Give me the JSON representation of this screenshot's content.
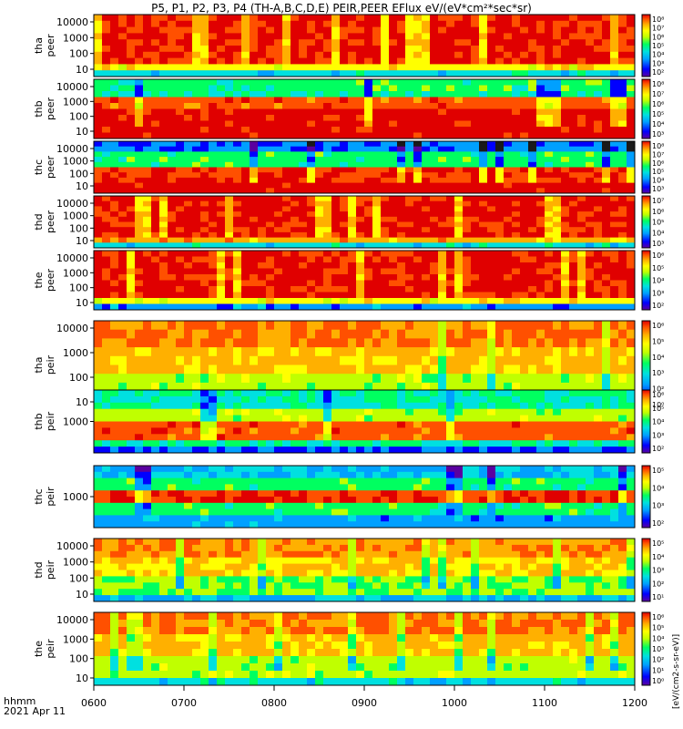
{
  "title": "P5, P1, P2, P3, P4 (TH-A,B,C,D,E) PEIR,PEER EFlux eV/(eV*cm²*sec*sr)",
  "footer": {
    "line1": "hhmm",
    "line2": "2021 Apr 11"
  },
  "colorbar_unit_label": "[eV/(cm2-s-sr-eV)]",
  "colormap": [
    "#1a1a1a",
    "#5a00a0",
    "#0000ff",
    "#00a0ff",
    "#00e0e0",
    "#00ff60",
    "#c0ff00",
    "#ffff00",
    "#ffb000",
    "#ff5000",
    "#e00000"
  ],
  "chart_data": {
    "type": "heatmap",
    "xlabel": "",
    "x_ticks": [
      "0600",
      "0700",
      "0800",
      "0900",
      "1000",
      "1100",
      "1200"
    ],
    "x_range": [
      "0600",
      "1200"
    ],
    "panels": [
      {
        "label_line1": "tha",
        "label_line2": "peer",
        "yticks": [
          "10000",
          "1000",
          "100",
          "10"
        ],
        "cb_ticks": [
          "10⁸",
          "10⁷",
          "10⁶",
          "10⁵",
          "10⁴",
          "10³",
          "10²"
        ]
      },
      {
        "label_line1": "thb",
        "label_line2": "peer",
        "yticks": [
          "10000",
          "1000",
          "100",
          "10"
        ],
        "cb_ticks": [
          "10⁸",
          "10⁷",
          "10⁶",
          "10⁵",
          "10⁴",
          "10³"
        ]
      },
      {
        "label_line1": "thc",
        "label_line2": "peer",
        "yticks": [
          "10000",
          "1000",
          "100",
          "10"
        ],
        "cb_ticks": [
          "10⁸",
          "10⁷",
          "10⁶",
          "10⁵",
          "10⁴",
          "10³"
        ]
      },
      {
        "label_line1": "thd",
        "label_line2": "peer",
        "yticks": [
          "10000",
          "1000",
          "100",
          "10"
        ],
        "cb_ticks": [
          "10⁷",
          "10⁶",
          "10⁵",
          "10⁴",
          "10³"
        ]
      },
      {
        "label_line1": "the",
        "label_line2": "peer",
        "yticks": [
          "10000",
          "1000",
          "100",
          "10"
        ],
        "cb_ticks": [
          "10⁶",
          "10⁵",
          "10⁴",
          "10³",
          "10²"
        ]
      },
      {
        "label_line1": "tha",
        "label_line2": "peir",
        "yticks": [
          "10000",
          "1000",
          "100",
          "10"
        ],
        "cb_ticks": [
          "10⁶",
          "10⁵",
          "10⁴",
          "10³",
          "10²",
          "10⁰"
        ]
      },
      {
        "label_line1": "thb",
        "label_line2": "peir",
        "yticks": [
          "1000"
        ],
        "cb_ticks": [
          "10⁶",
          "10⁵",
          "10⁴",
          "10³",
          "10²"
        ]
      },
      {
        "label_line1": "thc",
        "label_line2": "peir",
        "yticks": [
          "1000"
        ],
        "cb_ticks": [
          "10⁵",
          "10⁴",
          "10³",
          "10²"
        ]
      },
      {
        "label_line1": "thd",
        "label_line2": "peir",
        "yticks": [
          "10000",
          "1000",
          "100",
          "10"
        ],
        "cb_ticks": [
          "10⁵",
          "10⁴",
          "10³",
          "10²",
          "10¹"
        ]
      },
      {
        "label_line1": "the",
        "label_line2": "peir",
        "yticks": [
          "10000",
          "1000",
          "100",
          "10"
        ],
        "cb_ticks": [
          "10⁶",
          "10⁵",
          "10⁴",
          "10³",
          "10²",
          "10¹",
          "10⁰"
        ]
      }
    ]
  }
}
